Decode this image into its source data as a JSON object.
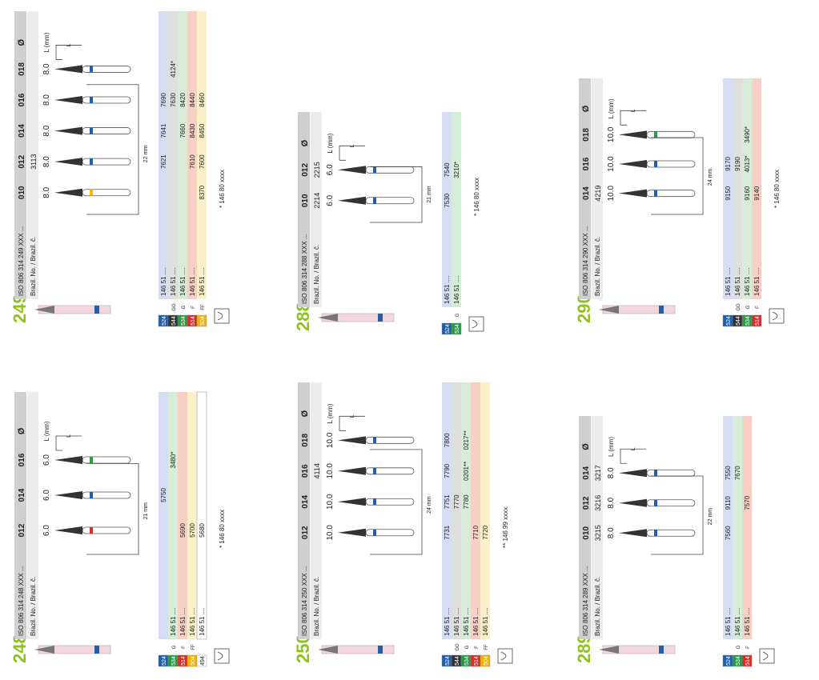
{
  "colors": {
    "green_title": "#8dc21f",
    "c524": "#1f5fb0",
    "c544": "#333333",
    "c534": "#2a9a46",
    "c514": "#d92e2a",
    "c504": "#f2b400",
    "c494": "#ffffff",
    "tint_blue": "#d6dcf4",
    "tint_grey": "#dedede",
    "tint_green": "#d4ecd8",
    "tint_red": "#f8cfc4",
    "tint_yellow": "#fbf1c8",
    "header_grey": "#cfcfcf"
  },
  "labels": {
    "diam": "Ø",
    "len": "L (mm)",
    "brazil": "Brazil. No. / Brazil. č.",
    "L": "L"
  },
  "products": [
    {
      "id": "249",
      "iso": "ISO 806 314 249 XXX ...",
      "sizes": [
        "010",
        "012",
        "014",
        "016",
        "018"
      ],
      "brazil": [
        "",
        "3113",
        "",
        "",
        ""
      ],
      "lengths": [
        "8.0",
        "8.0",
        "8.0",
        "8.0",
        "8.0"
      ],
      "ring_colors": [
        "#f0c000",
        "#1f5fb0",
        "#1f5fb0",
        "#1f5fb0",
        "#1f5fb0"
      ],
      "dim": "22 mm",
      "rows": [
        {
          "code": "524",
          "grit": "",
          "prefix": "146 51 ....",
          "values": [
            "",
            "7621",
            "7641",
            "7690",
            ""
          ]
        },
        {
          "code": "544",
          "grit": "GG",
          "prefix": "146 51 ....",
          "values": [
            "",
            "",
            "",
            "7630",
            "4124*"
          ]
        },
        {
          "code": "534",
          "grit": "G",
          "prefix": "146 51 ....",
          "values": [
            "",
            "",
            "7660",
            "8420",
            ""
          ]
        },
        {
          "code": "514",
          "grit": "F",
          "prefix": "146 51 ....",
          "values": [
            "",
            "7610",
            "8430",
            "8440",
            ""
          ]
        },
        {
          "code": "504",
          "grit": "FF",
          "prefix": "146 51 ....",
          "values": [
            "8370",
            "7600",
            "8450",
            "8460",
            ""
          ]
        }
      ],
      "notes": [
        "* 146 80 xxxx"
      ]
    },
    {
      "id": "248",
      "iso": "ISO 806 314 248 XXX ...",
      "sizes": [
        "012",
        "014",
        "016"
      ],
      "brazil": [
        "",
        "",
        ""
      ],
      "lengths": [
        "6.0",
        "6.0",
        "6.0"
      ],
      "ring_colors": [
        "#d92e2a",
        "#1f5fb0",
        "#2a9a46"
      ],
      "dim": "21 mm",
      "rows": [
        {
          "code": "524",
          "grit": "",
          "prefix": "",
          "values": [
            "",
            "5750",
            ""
          ]
        },
        {
          "code": "534",
          "grit": "G",
          "prefix": "146 51 ....",
          "values": [
            "",
            "",
            "3480*"
          ]
        },
        {
          "code": "514",
          "grit": "F",
          "prefix": "146 51 ....",
          "values": [
            "5690",
            "",
            ""
          ]
        },
        {
          "code": "504",
          "grit": "FF",
          "prefix": "146 51 ....",
          "values": [
            "5700",
            "",
            ""
          ]
        },
        {
          "code": "494",
          "grit": "",
          "prefix": "146 51 ....",
          "values": [
            "5680",
            "",
            ""
          ]
        }
      ],
      "notes": [
        "* 146 80 xxxx"
      ]
    },
    {
      "id": "288",
      "iso": "ISO 806 314 288 XXX ...",
      "sizes": [
        "010",
        "012"
      ],
      "brazil": [
        "2214",
        "2215"
      ],
      "lengths": [
        "6.0",
        "6.0"
      ],
      "ring_colors": [
        "#1f5fb0",
        "#1f5fb0"
      ],
      "dim": "21 mm",
      "rows": [
        {
          "code": "524",
          "grit": "",
          "prefix": "146 51 ....",
          "values": [
            "7530",
            "7540"
          ]
        },
        {
          "code": "534",
          "grit": "G",
          "prefix": "146 51 ....",
          "values": [
            "",
            "3210*"
          ]
        }
      ],
      "notes": [
        "* 146 80 xxxx"
      ]
    },
    {
      "id": "250",
      "iso": "ISO 806 314 250 XXX ...",
      "sizes": [
        "012",
        "014",
        "016",
        "018"
      ],
      "brazil": [
        "",
        "",
        "4114",
        ""
      ],
      "lengths": [
        "10.0",
        "10.0",
        "10.0",
        "10.0"
      ],
      "ring_colors": [
        "#1f5fb0",
        "#1f5fb0",
        "#1f5fb0",
        "#1f5fb0"
      ],
      "dim": "24 mm",
      "rows": [
        {
          "code": "524",
          "grit": "",
          "prefix": "146 51 ....",
          "values": [
            "7731",
            "7751",
            "7790",
            "7800"
          ]
        },
        {
          "code": "544",
          "grit": "GG",
          "prefix": "146 51 ....",
          "values": [
            "",
            "7770",
            "",
            ""
          ]
        },
        {
          "code": "534",
          "grit": "G",
          "prefix": "146 51 ....",
          "values": [
            "",
            "7780",
            "0201**",
            "0217**"
          ]
        },
        {
          "code": "514",
          "grit": "F",
          "prefix": "146 51 ....",
          "values": [
            "7710",
            "",
            "",
            ""
          ]
        },
        {
          "code": "504",
          "grit": "FF",
          "prefix": "146 51 ....",
          "values": [
            "7720",
            "",
            "",
            ""
          ]
        }
      ],
      "notes": [
        "** 146 99 xxxx"
      ]
    },
    {
      "id": "290",
      "iso": "ISO 806 314 290 XXX ...",
      "sizes": [
        "014",
        "016",
        "018"
      ],
      "brazil": [
        "4219",
        "",
        ""
      ],
      "lengths": [
        "10.0",
        "10.0",
        "10.0"
      ],
      "ring_colors": [
        "#1f5fb0",
        "#1f5fb0",
        "#2a9a46"
      ],
      "dim": "24 mm",
      "rows": [
        {
          "code": "524",
          "grit": "",
          "prefix": "146 51 ....",
          "values": [
            "9150",
            "9170",
            ""
          ]
        },
        {
          "code": "544",
          "grit": "GG",
          "prefix": "146 51 ....",
          "values": [
            "",
            "9190",
            ""
          ]
        },
        {
          "code": "534",
          "grit": "G",
          "prefix": "146 51 ....",
          "values": [
            "9160",
            "4013*",
            "3490*"
          ]
        },
        {
          "code": "514",
          "grit": "F",
          "prefix": "146 51 ....",
          "values": [
            "9140",
            "",
            ""
          ]
        }
      ],
      "notes": [
        "* 146 80 xxxx"
      ]
    },
    {
      "id": "289",
      "iso": "ISO 806 314 289 XXX ...",
      "sizes": [
        "010",
        "012",
        "014"
      ],
      "brazil": [
        "3215",
        "3216",
        "3217"
      ],
      "lengths": [
        "8.0",
        "8.0",
        "8.0"
      ],
      "ring_colors": [
        "#1f5fb0",
        "#1f5fb0",
        "#1f5fb0"
      ],
      "dim": "22 mm",
      "rows": [
        {
          "code": "524",
          "grit": "",
          "prefix": "146 51 ....",
          "values": [
            "7560",
            "9110",
            "7550"
          ]
        },
        {
          "code": "534",
          "grit": "G",
          "prefix": "146 51 ....",
          "values": [
            "",
            "",
            "7670"
          ]
        },
        {
          "code": "514",
          "grit": "F",
          "prefix": "146 51 ....",
          "values": [
            "",
            "7570",
            ""
          ]
        }
      ],
      "notes": []
    }
  ]
}
